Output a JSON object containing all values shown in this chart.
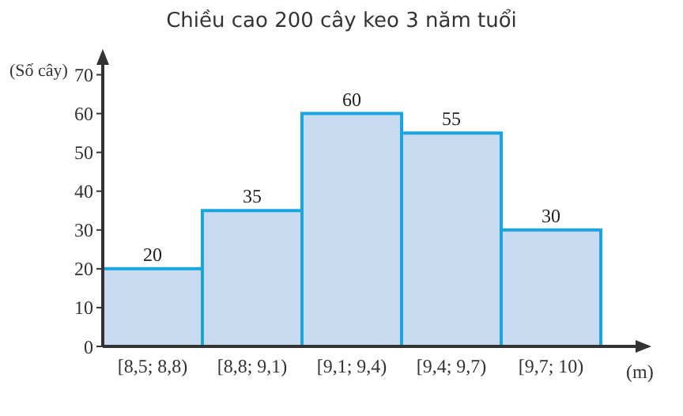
{
  "chart_data": {
    "type": "bar",
    "title": "Chiều cao 200 cây keo 3 năm tuổi",
    "xlabel": "(m)",
    "ylabel": "(Số cây)",
    "categories": [
      "[8,5; 8,8)",
      "[8,8; 9,1)",
      "[9,1; 9,4)",
      "[9,4; 9,7)",
      "[9,7; 10)"
    ],
    "values": [
      20,
      35,
      60,
      55,
      30
    ],
    "color": "#c8dbf0",
    "ylim": [
      0,
      75
    ],
    "yticks": [
      0,
      10,
      20,
      30,
      40,
      50,
      60,
      70
    ],
    "data_labels": true
  }
}
